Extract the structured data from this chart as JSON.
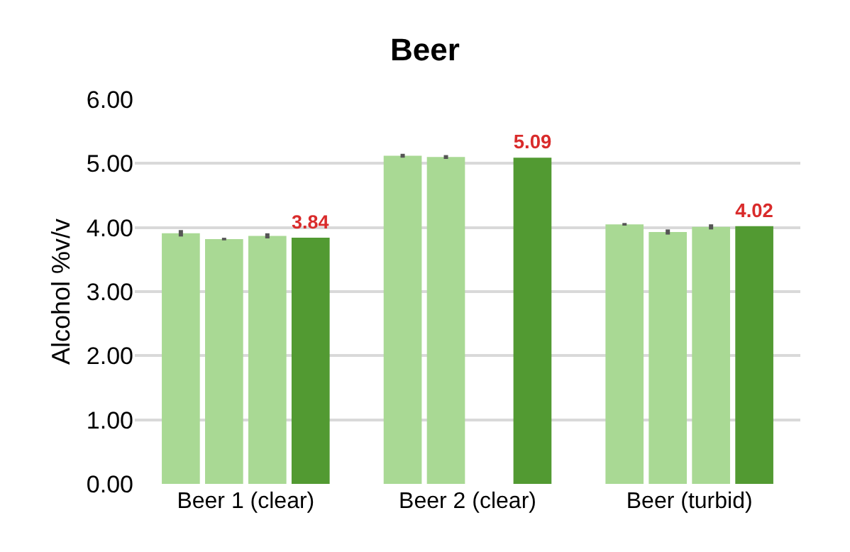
{
  "chart_data": {
    "type": "bar",
    "title": "Beer",
    "ylabel": "Alcohol %v/v",
    "categories": [
      "Beer 1 (clear)",
      "Beer 2 (clear)",
      "Beer (turbid)"
    ],
    "series": [
      {
        "color": "#a9d994",
        "values": [
          3.91,
          5.12,
          4.05
        ],
        "errors": [
          0.05,
          0.03,
          0.02
        ]
      },
      {
        "color": "#a9d994",
        "values": [
          3.82,
          5.1,
          3.93
        ],
        "errors": [
          0.02,
          0.03,
          0.04
        ]
      },
      {
        "color": "#a9d994",
        "values": [
          3.87,
          null,
          4.01
        ],
        "errors": [
          0.04,
          null,
          0.04
        ]
      },
      {
        "color": "#529a32",
        "values": [
          3.84,
          5.09,
          4.02
        ],
        "value_labels": [
          "3.84",
          "5.09",
          "4.02"
        ]
      }
    ],
    "ylim": [
      0,
      6
    ],
    "yticks": [
      {
        "value": 0,
        "label": "0.00"
      },
      {
        "value": 1,
        "label": "1.00"
      },
      {
        "value": 2,
        "label": "2.00"
      },
      {
        "value": 3,
        "label": "3.00"
      },
      {
        "value": 4,
        "label": "4.00"
      },
      {
        "value": 5,
        "label": "5.00"
      },
      {
        "value": 6,
        "label": "6.00"
      }
    ],
    "grid": "y",
    "legend": false
  }
}
